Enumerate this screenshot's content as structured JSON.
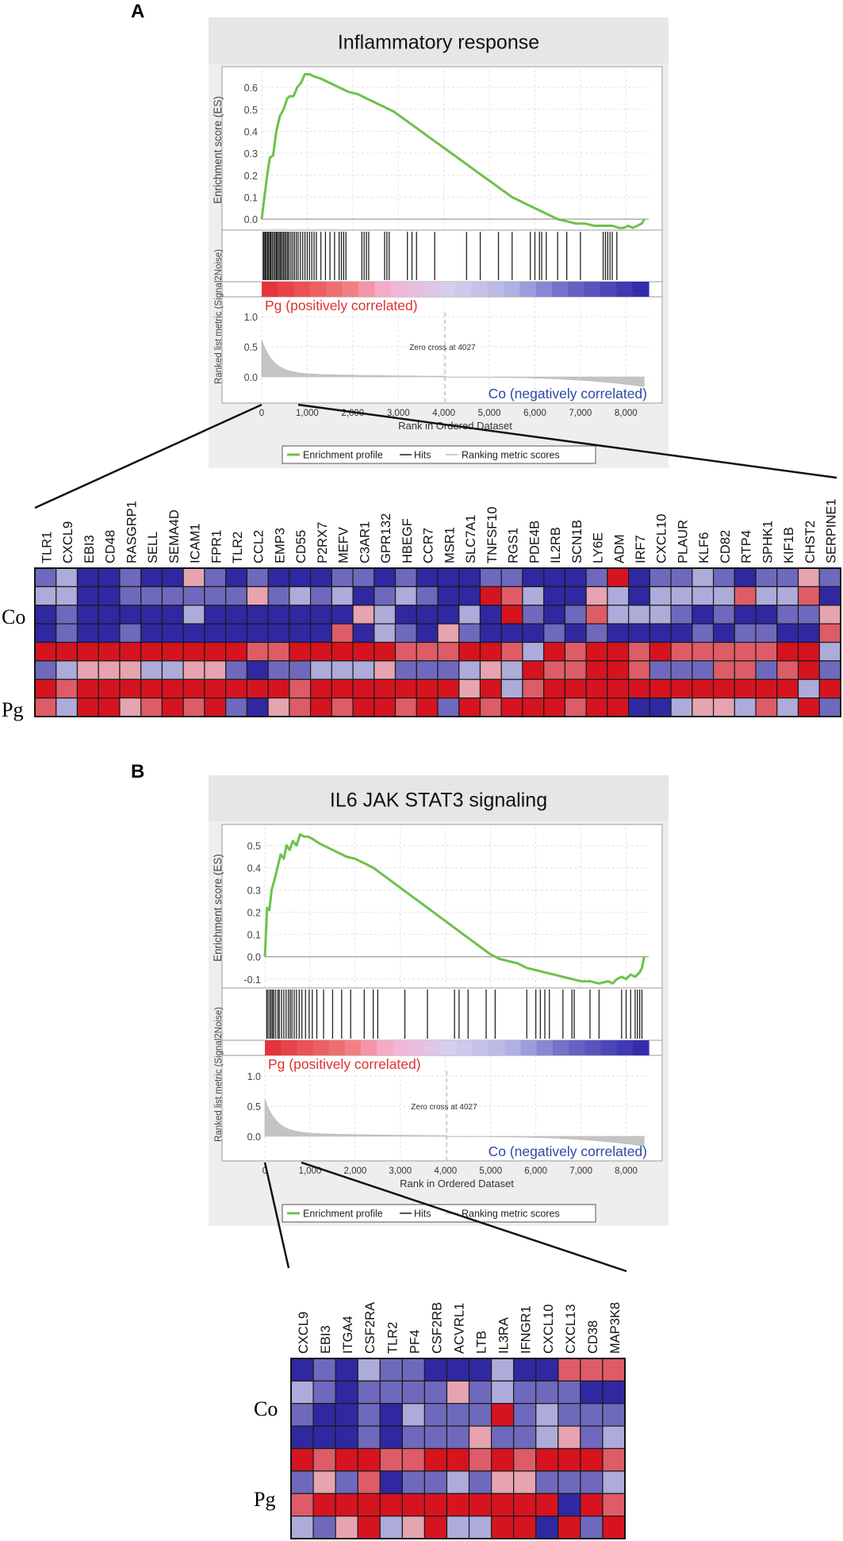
{
  "chart_data": [
    {
      "panel": "A",
      "type": "line",
      "title": "Inflammatory response",
      "es_ylabel": "Enrichment score (ES)",
      "es_yticks": [
        "0.6",
        "0.5",
        "0.4",
        "0.3",
        "0.2",
        "0.1",
        "0.0"
      ],
      "es_ylim": [
        -0.05,
        0.68
      ],
      "es_curve": {
        "x": [
          0,
          60,
          120,
          180,
          250,
          320,
          400,
          480,
          560,
          620,
          700,
          780,
          860,
          950,
          1050,
          1150,
          1300,
          1500,
          1700,
          1900,
          2100,
          2300,
          2500,
          2700,
          2900,
          3100,
          3300,
          3500,
          3700,
          3900,
          4100,
          4300,
          4500,
          4700,
          4900,
          5100,
          5300,
          5500,
          5700,
          5900,
          6100,
          6300,
          6500,
          6700,
          6900,
          7100,
          7300,
          7500,
          7700,
          7850,
          7950,
          8050,
          8150,
          8250,
          8350,
          8400
        ],
        "y": [
          0.0,
          0.1,
          0.2,
          0.28,
          0.29,
          0.4,
          0.47,
          0.5,
          0.55,
          0.56,
          0.56,
          0.6,
          0.62,
          0.66,
          0.66,
          0.65,
          0.64,
          0.62,
          0.6,
          0.58,
          0.57,
          0.55,
          0.53,
          0.51,
          0.49,
          0.46,
          0.43,
          0.4,
          0.37,
          0.34,
          0.31,
          0.28,
          0.25,
          0.22,
          0.19,
          0.16,
          0.13,
          0.1,
          0.08,
          0.06,
          0.04,
          0.02,
          0.0,
          -0.01,
          -0.02,
          -0.02,
          -0.03,
          -0.03,
          -0.03,
          -0.04,
          -0.04,
          -0.03,
          -0.04,
          -0.03,
          -0.02,
          0.0
        ]
      },
      "hits": [
        30,
        55,
        80,
        100,
        130,
        150,
        180,
        200,
        230,
        260,
        290,
        320,
        340,
        370,
        400,
        420,
        450,
        480,
        510,
        540,
        570,
        600,
        640,
        680,
        720,
        760,
        800,
        850,
        900,
        950,
        1000,
        1050,
        1100,
        1150,
        1200,
        1300,
        1400,
        1500,
        1600,
        1700,
        1750,
        1800,
        1850,
        2200,
        2250,
        2300,
        2350,
        2700,
        2750,
        2800,
        3200,
        3300,
        3400,
        3800,
        4500,
        4800,
        5200,
        5500,
        5900,
        6000,
        6100,
        6150,
        6250,
        6500,
        6700,
        7000,
        7500,
        7550,
        7600,
        7650,
        7700,
        7800
      ],
      "metric_ylabel": "Ranked list metric (Signal2Noise)",
      "metric_yticks": [
        "1.0",
        "0.5",
        "0.0"
      ],
      "zero_cross_label": "Zero cross at 4027",
      "zero_cross": 4027,
      "pos_label": "Pg (positively correlated)",
      "neg_label": "Co (negatively correlated)",
      "xlabel": "Rank in Ordered Dataset",
      "xticks": [
        "0",
        "1,000",
        "2,000",
        "3,000",
        "4,000",
        "5,000",
        "6,000",
        "7,000",
        "8,000"
      ],
      "xlim": [
        0,
        8500
      ],
      "legend": [
        "Enrichment profile",
        "Hits",
        "Ranking metric scores"
      ],
      "colors": {
        "curve": "#6cc24a",
        "pos": "#e03030",
        "neg": "#3a34a0"
      }
    },
    {
      "panel": "B",
      "type": "line",
      "title": "IL6 JAK STAT3 signaling",
      "es_ylabel": "Enrichment score (ES)",
      "es_yticks": [
        "0.5",
        "0.4",
        "0.3",
        "0.2",
        "0.1",
        "0.0",
        "-0.1"
      ],
      "es_ylim": [
        -0.14,
        0.58
      ],
      "es_curve": {
        "x": [
          0,
          50,
          100,
          150,
          220,
          280,
          350,
          420,
          480,
          550,
          620,
          700,
          780,
          860,
          950,
          1050,
          1200,
          1400,
          1600,
          1800,
          2000,
          2200,
          2400,
          2600,
          2800,
          3000,
          3200,
          3400,
          3600,
          3800,
          4000,
          4200,
          4400,
          4600,
          4800,
          5000,
          5200,
          5400,
          5600,
          5800,
          6000,
          6200,
          6400,
          6600,
          6800,
          7000,
          7200,
          7400,
          7600,
          7700,
          7800,
          7900,
          8000,
          8100,
          8200,
          8300,
          8350,
          8400
        ],
        "y": [
          0.0,
          0.22,
          0.21,
          0.3,
          0.35,
          0.4,
          0.46,
          0.44,
          0.5,
          0.48,
          0.52,
          0.5,
          0.55,
          0.54,
          0.54,
          0.53,
          0.51,
          0.49,
          0.47,
          0.45,
          0.44,
          0.42,
          0.4,
          0.37,
          0.34,
          0.31,
          0.28,
          0.25,
          0.22,
          0.19,
          0.16,
          0.13,
          0.1,
          0.07,
          0.04,
          0.01,
          -0.01,
          -0.02,
          -0.03,
          -0.05,
          -0.06,
          -0.07,
          -0.08,
          -0.09,
          -0.1,
          -0.11,
          -0.11,
          -0.12,
          -0.11,
          -0.12,
          -0.1,
          -0.09,
          -0.1,
          -0.08,
          -0.09,
          -0.07,
          -0.05,
          0.0
        ]
      },
      "hits": [
        40,
        70,
        110,
        140,
        170,
        200,
        240,
        290,
        320,
        370,
        420,
        470,
        520,
        560,
        600,
        650,
        700,
        760,
        820,
        900,
        980,
        1050,
        1150,
        1300,
        1500,
        1700,
        1900,
        2200,
        2400,
        2500,
        3100,
        3600,
        4200,
        4300,
        4500,
        4900,
        5100,
        5800,
        6000,
        6100,
        6200,
        6300,
        6600,
        6800,
        6850,
        7200,
        7400,
        7900,
        8000,
        8100,
        8200,
        8250,
        8300,
        8350
      ],
      "metric_ylabel": "Ranked list metric (Signal2Noise)",
      "metric_yticks": [
        "1.0",
        "0.5",
        "0.0"
      ],
      "zero_cross_label": "Zero cross at 4027",
      "zero_cross": 4027,
      "pos_label": "Pg (positively correlated)",
      "neg_label": "Co (negatively correlated)",
      "xlabel": "Rank in Ordered Dataset",
      "xticks": [
        "0",
        "1,000",
        "2,000",
        "3,000",
        "4,000",
        "5,000",
        "6,000",
        "7,000",
        "8,000"
      ],
      "xlim": [
        0,
        8500
      ],
      "legend": [
        "Enrichment profile",
        "Hits",
        "Ranking metric scores"
      ],
      "colors": {
        "curve": "#6cc24a",
        "pos": "#e03030",
        "neg": "#3a34a0"
      }
    },
    {
      "panel": "A-heatmap",
      "type": "heatmap",
      "scale": "-3 (deep blue) to +3 (deep red)",
      "row_labels": [
        "Co",
        "Pg"
      ],
      "genes": [
        "TLR1",
        "CXCL9",
        "EBI3",
        "CD48",
        "RASGRP1",
        "SELL",
        "SEMA4D",
        "ICAM1",
        "FPR1",
        "TLR2",
        "CCL2",
        "EMP3",
        "CD55",
        "P2RX7",
        "MEFV",
        "C3AR1",
        "GPR132",
        "HBEGF",
        "CCR7",
        "MSR1",
        "SLC7A1",
        "TNFSF10",
        "RGS1",
        "PDE4B",
        "IL2RB",
        "SCN1B",
        "LY6E",
        "ADM",
        "IRF7",
        "CXCL10",
        "PLAUR",
        "KLF6",
        "CD82",
        "RTP4",
        "SPHK1",
        "KIF1B",
        "CHST2",
        "SERPINE1"
      ],
      "values": [
        [
          -2,
          -1,
          -3,
          -3,
          -2,
          -3,
          -3,
          1,
          -2,
          -3,
          -2,
          -3,
          -3,
          -3,
          -2,
          -2,
          -3,
          -2,
          -3,
          -3,
          -3,
          -2,
          -2,
          -3,
          -3,
          -3,
          -2,
          3,
          -3,
          -2,
          -2,
          -1,
          -2,
          -3,
          -2,
          -2,
          1,
          -2
        ],
        [
          -1,
          -1,
          -3,
          -3,
          -2,
          -2,
          -2,
          -2,
          -2,
          -2,
          1,
          -2,
          -1,
          -2,
          -1,
          -3,
          -2,
          -1,
          -2,
          -3,
          -3,
          3,
          2,
          -1,
          -3,
          -3,
          1,
          -1,
          -3,
          -1,
          -1,
          -1,
          -1,
          2,
          -1,
          -1,
          2,
          -3
        ],
        [
          -3,
          -2,
          -3,
          -3,
          -3,
          -3,
          -3,
          -1,
          -3,
          -3,
          -3,
          -3,
          -3,
          -3,
          -3,
          1,
          -1,
          -3,
          -3,
          -3,
          -1,
          -3,
          3,
          -2,
          -3,
          -2,
          2,
          -1,
          -1,
          -1,
          -2,
          -3,
          -2,
          -3,
          -3,
          -2,
          -2,
          1
        ],
        [
          -3,
          -2,
          -3,
          -3,
          -2,
          -3,
          -3,
          -3,
          -3,
          -3,
          -3,
          -3,
          -3,
          -3,
          2,
          -3,
          -1,
          -2,
          -3,
          1,
          -2,
          -3,
          -3,
          -3,
          -2,
          -3,
          -2,
          -3,
          -3,
          -3,
          -3,
          -2,
          -3,
          -2,
          -2,
          -3,
          -3,
          2
        ],
        [
          3,
          3,
          3,
          3,
          3,
          3,
          3,
          3,
          3,
          3,
          2,
          2,
          3,
          3,
          3,
          3,
          3,
          2,
          2,
          2,
          3,
          3,
          2,
          -1,
          3,
          2,
          3,
          3,
          2,
          3,
          2,
          2,
          2,
          2,
          2,
          3,
          3,
          -1
        ],
        [
          -2,
          -1,
          1,
          1,
          1,
          -1,
          -1,
          1,
          1,
          -2,
          -3,
          -2,
          -2,
          -1,
          -1,
          -1,
          1,
          -2,
          -2,
          -2,
          -1,
          1,
          -1,
          3,
          2,
          2,
          3,
          3,
          2,
          -2,
          -2,
          -2,
          2,
          2,
          -2,
          2,
          3,
          -2
        ],
        [
          3,
          2,
          3,
          3,
          3,
          3,
          3,
          3,
          3,
          3,
          3,
          3,
          2,
          3,
          3,
          3,
          3,
          3,
          3,
          3,
          1,
          3,
          -1,
          2,
          3,
          3,
          3,
          3,
          3,
          3,
          3,
          3,
          3,
          3,
          3,
          3,
          -1,
          3
        ],
        [
          2,
          -1,
          3,
          3,
          1,
          2,
          3,
          2,
          3,
          -2,
          -3,
          1,
          2,
          3,
          2,
          3,
          3,
          2,
          3,
          -2,
          3,
          2,
          3,
          3,
          3,
          2,
          3,
          3,
          -3,
          -3,
          -1,
          1,
          1,
          -1,
          2,
          -1,
          3,
          -2
        ]
      ]
    },
    {
      "panel": "B-heatmap",
      "type": "heatmap",
      "scale": "-3 (deep blue) to +3 (deep red)",
      "row_labels": [
        "Co",
        "Pg"
      ],
      "genes": [
        "CXCL9",
        "EBI3",
        "ITGA4",
        "CSF2RA",
        "TLR2",
        "PF4",
        "CSF2RB",
        "ACVRL1",
        "LTB",
        "IL3RA",
        "IFNGR1",
        "CXCL10",
        "CXCL13",
        "CD38",
        "MAP3K8"
      ],
      "values": [
        [
          -3,
          -2,
          -3,
          -1,
          -2,
          -2,
          -3,
          -3,
          -3,
          -1,
          -3,
          -3,
          2,
          2,
          2
        ],
        [
          -1,
          -2,
          -3,
          -2,
          -2,
          -2,
          -2,
          1,
          -2,
          -1,
          -2,
          -2,
          -2,
          -3,
          -3
        ],
        [
          -2,
          -3,
          -3,
          -2,
          -3,
          -1,
          -2,
          -2,
          -2,
          3,
          -2,
          -1,
          -2,
          -2,
          -2
        ],
        [
          -3,
          -3,
          -3,
          -2,
          -3,
          -2,
          -2,
          -2,
          1,
          -2,
          -2,
          -1,
          1,
          -2,
          -1
        ],
        [
          3,
          2,
          3,
          3,
          2,
          2,
          3,
          3,
          2,
          3,
          2,
          3,
          3,
          3,
          2
        ],
        [
          -2,
          1,
          -2,
          2,
          -3,
          -2,
          -2,
          -1,
          -2,
          1,
          1,
          -2,
          -2,
          -2,
          -1
        ],
        [
          2,
          3,
          3,
          3,
          3,
          3,
          3,
          3,
          3,
          3,
          3,
          3,
          -3,
          3,
          2
        ],
        [
          -1,
          -2,
          1,
          3,
          -1,
          1,
          3,
          -1,
          -1,
          3,
          3,
          -3,
          3,
          -2,
          3
        ]
      ]
    }
  ],
  "panel_labels": {
    "a": "A",
    "b": "B"
  },
  "row_group_labels": {
    "co": "Co",
    "pg": "Pg"
  }
}
